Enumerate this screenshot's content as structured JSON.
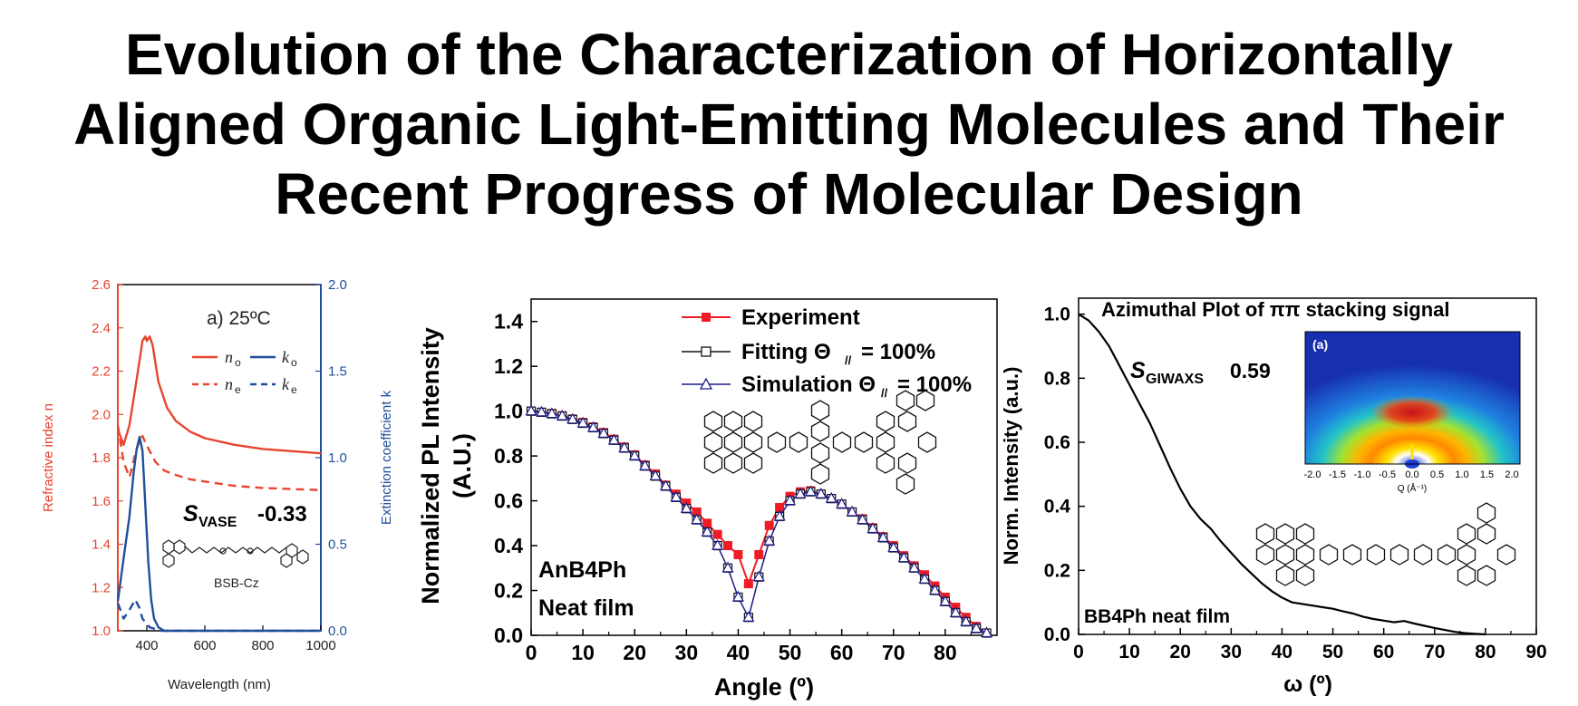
{
  "title": {
    "line1": "Evolution of the Characterization of Horizontally",
    "line2": "Aligned Organic Light-Emitting Molecules and Their",
    "line3": "Recent Progress of Molecular Design"
  },
  "colors": {
    "red": "#e8442e",
    "blue": "#1f4f9c",
    "navy": "#1a1a8c",
    "plotred": "#ee1c24"
  },
  "chart_data": [
    {
      "type": "line",
      "panel_label": "a) 25ºC",
      "xlabel": "Wavelength (nm)",
      "ylabel": "Refractive index n",
      "y2label": "Extinction coefficient k",
      "xlim": [
        300,
        1000
      ],
      "ylim": [
        1.0,
        2.6
      ],
      "y2lim": [
        0.0,
        2.0
      ],
      "xticks": [
        "400",
        "600",
        "800",
        "1000"
      ],
      "yticks": [
        "1.0",
        "1.2",
        "1.4",
        "1.6",
        "1.8",
        "2.0",
        "2.2",
        "2.4",
        "2.6"
      ],
      "y2ticks": [
        "0.0",
        "0.5",
        "1.0",
        "1.5",
        "2.0"
      ],
      "legend": {
        "no": "n",
        "no_sub": "o",
        "ne": "n",
        "ne_sub": "e",
        "ko": "k",
        "ko_sub": "o",
        "ke": "k",
        "ke_sub": "e"
      },
      "annotation": {
        "s": "S",
        "sub": "VASE",
        "value": "-0.33"
      },
      "molecule_label": "BSB-Cz",
      "series": [
        {
          "name": "no",
          "axis": "left",
          "dash": false,
          "color": "#e8442e",
          "x": [
            300,
            320,
            340,
            360,
            375,
            385,
            395,
            400,
            410,
            420,
            440,
            470,
            500,
            550,
            600,
            700,
            800,
            900,
            1000
          ],
          "y": [
            1.93,
            1.86,
            1.95,
            2.12,
            2.25,
            2.34,
            2.36,
            2.34,
            2.36,
            2.32,
            2.15,
            2.03,
            1.97,
            1.92,
            1.89,
            1.86,
            1.84,
            1.83,
            1.82
          ]
        },
        {
          "name": "ne",
          "axis": "left",
          "dash": true,
          "color": "#e8442e",
          "x": [
            300,
            320,
            340,
            350,
            360,
            375,
            385,
            395,
            410,
            430,
            460,
            500,
            550,
            600,
            700,
            800,
            900,
            1000
          ],
          "y": [
            1.95,
            1.78,
            1.71,
            1.76,
            1.82,
            1.88,
            1.9,
            1.87,
            1.83,
            1.78,
            1.74,
            1.72,
            1.7,
            1.69,
            1.67,
            1.66,
            1.655,
            1.65
          ]
        },
        {
          "name": "ko",
          "axis": "right",
          "dash": false,
          "color": "#1f4f9c",
          "x": [
            300,
            320,
            340,
            355,
            365,
            375,
            385,
            395,
            405,
            415,
            425,
            440,
            460,
            1000
          ],
          "y": [
            0.17,
            0.42,
            0.66,
            0.92,
            1.05,
            1.12,
            1.04,
            0.72,
            0.4,
            0.18,
            0.07,
            0.02,
            0.0,
            0.0
          ]
        },
        {
          "name": "ke",
          "axis": "right",
          "dash": true,
          "color": "#1f4f9c",
          "x": [
            300,
            320,
            340,
            360,
            375,
            385,
            395,
            410,
            430,
            450,
            1000
          ],
          "y": [
            0.16,
            0.07,
            0.12,
            0.18,
            0.13,
            0.07,
            0.05,
            0.02,
            0.01,
            0.0,
            0.0
          ]
        }
      ]
    },
    {
      "type": "line",
      "xlabel": "Angle (º)",
      "ylabel_line1": "Normalized PL Intensity",
      "ylabel_line2": "(A.U.)",
      "xlim": [
        0,
        90
      ],
      "ylim": [
        0.0,
        1.5
      ],
      "xticks": [
        "0",
        "10",
        "20",
        "30",
        "40",
        "50",
        "60",
        "70",
        "80"
      ],
      "yticks": [
        "0.0",
        "0.2",
        "0.4",
        "0.6",
        "0.8",
        "1.0",
        "1.2",
        "1.4"
      ],
      "legend": [
        "Experiment",
        "Fitting Θ",
        "= 100%",
        "Simulation Θ",
        "= 100%"
      ],
      "theta_sub": "//",
      "annotation": [
        "AnB4Ph",
        "Neat film"
      ],
      "series": [
        {
          "name": "Experiment",
          "color": "#ee1c24",
          "marker": "filled-square",
          "x": [
            0,
            2,
            4,
            6,
            8,
            10,
            12,
            14,
            16,
            18,
            20,
            22,
            24,
            26,
            28,
            30,
            32,
            34,
            36,
            38,
            40,
            42,
            44,
            46,
            48,
            50,
            52,
            54,
            56,
            58,
            60,
            62,
            64,
            66,
            68,
            70,
            72,
            74,
            76,
            78,
            80,
            82,
            84,
            86,
            88
          ],
          "y": [
            1.0,
            0.995,
            0.99,
            0.98,
            0.965,
            0.95,
            0.93,
            0.905,
            0.875,
            0.84,
            0.805,
            0.76,
            0.72,
            0.67,
            0.63,
            0.59,
            0.55,
            0.5,
            0.45,
            0.4,
            0.36,
            0.23,
            0.36,
            0.49,
            0.57,
            0.62,
            0.64,
            0.645,
            0.63,
            0.61,
            0.585,
            0.55,
            0.52,
            0.48,
            0.44,
            0.4,
            0.355,
            0.31,
            0.27,
            0.22,
            0.17,
            0.125,
            0.08,
            0.04,
            0.01
          ]
        },
        {
          "name": "Fitting",
          "color": "#111111",
          "marker": "open-square",
          "x": [
            0,
            2,
            4,
            6,
            8,
            10,
            12,
            14,
            16,
            18,
            20,
            22,
            24,
            26,
            28,
            30,
            32,
            34,
            36,
            38,
            40,
            42,
            44,
            46,
            48,
            50,
            52,
            54,
            56,
            58,
            60,
            62,
            64,
            66,
            68,
            70,
            72,
            74,
            76,
            78,
            80,
            82,
            84,
            86,
            88
          ],
          "y": [
            1.0,
            0.995,
            0.988,
            0.978,
            0.963,
            0.946,
            0.926,
            0.9,
            0.87,
            0.835,
            0.8,
            0.755,
            0.71,
            0.665,
            0.615,
            0.565,
            0.515,
            0.46,
            0.4,
            0.3,
            0.17,
            0.08,
            0.26,
            0.42,
            0.53,
            0.6,
            0.63,
            0.64,
            0.63,
            0.61,
            0.585,
            0.55,
            0.515,
            0.475,
            0.435,
            0.39,
            0.345,
            0.3,
            0.25,
            0.2,
            0.15,
            0.1,
            0.06,
            0.03,
            0.01
          ]
        },
        {
          "name": "Simulation",
          "color": "#1a1a8c",
          "marker": "open-triangle",
          "x": [
            0,
            2,
            4,
            6,
            8,
            10,
            12,
            14,
            16,
            18,
            20,
            22,
            24,
            26,
            28,
            30,
            32,
            34,
            36,
            38,
            40,
            42,
            44,
            46,
            48,
            50,
            52,
            54,
            56,
            58,
            60,
            62,
            64,
            66,
            68,
            70,
            72,
            74,
            76,
            78,
            80,
            82,
            84,
            86,
            88
          ],
          "y": [
            1.0,
            0.995,
            0.988,
            0.978,
            0.963,
            0.946,
            0.926,
            0.9,
            0.87,
            0.835,
            0.8,
            0.755,
            0.71,
            0.665,
            0.615,
            0.565,
            0.515,
            0.46,
            0.4,
            0.3,
            0.17,
            0.08,
            0.26,
            0.42,
            0.53,
            0.6,
            0.63,
            0.64,
            0.63,
            0.61,
            0.585,
            0.55,
            0.515,
            0.475,
            0.435,
            0.39,
            0.345,
            0.3,
            0.25,
            0.2,
            0.15,
            0.1,
            0.06,
            0.03,
            0.01
          ]
        }
      ]
    },
    {
      "type": "line",
      "title": "Azimuthal Plot of ππ stacking signal",
      "xlabel": "ω  (º)",
      "ylabel": "Norm. Intensity (a.u.)",
      "xlim": [
        0,
        90
      ],
      "ylim": [
        0.0,
        1.05
      ],
      "xticks": [
        "0",
        "10",
        "20",
        "30",
        "40",
        "50",
        "60",
        "70",
        "80",
        "90"
      ],
      "yticks": [
        "0.0",
        "0.2",
        "0.4",
        "0.6",
        "0.8",
        "1.0"
      ],
      "annotation": {
        "s": "S",
        "sub": "GIWAXS",
        "value": "0.59"
      },
      "sample_label": "BB4Ph neat film",
      "inset": {
        "label": "(a)",
        "xlabel": "Q (Å⁻¹)",
        "xticks": [
          "-2.0",
          "-1.5",
          "-1.0",
          "-0.5",
          "0.0",
          "0.5",
          "1.0",
          "1.5",
          "2.0"
        ]
      },
      "series": [
        {
          "name": "",
          "color": "#000000",
          "x": [
            0,
            2,
            4,
            6,
            8,
            10,
            12,
            14,
            16,
            18,
            20,
            22,
            24,
            26,
            28,
            30,
            32,
            34,
            36,
            38,
            40,
            42,
            44,
            46,
            48,
            50,
            52,
            54,
            56,
            58,
            60,
            62,
            64,
            66,
            68,
            70,
            72,
            74,
            76,
            78,
            80
          ],
          "y": [
            1.0,
            0.98,
            0.945,
            0.9,
            0.84,
            0.78,
            0.72,
            0.66,
            0.59,
            0.52,
            0.455,
            0.4,
            0.36,
            0.33,
            0.29,
            0.255,
            0.22,
            0.19,
            0.16,
            0.135,
            0.115,
            0.1,
            0.095,
            0.09,
            0.085,
            0.08,
            0.072,
            0.065,
            0.055,
            0.048,
            0.043,
            0.038,
            0.042,
            0.034,
            0.027,
            0.02,
            0.014,
            0.008,
            0.004,
            0.002,
            0.0
          ]
        }
      ]
    }
  ]
}
